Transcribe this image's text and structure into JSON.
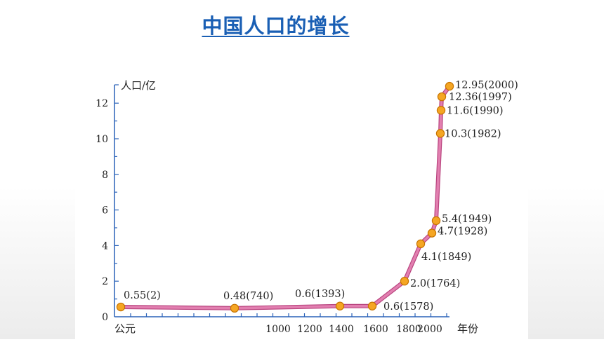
{
  "page": {
    "title": "中国人口的增长"
  },
  "colors": {
    "title": "#1a5fb4",
    "line": "#e27fb0",
    "point": "#f5a623",
    "axis": "#2a62b8"
  },
  "chart_data": {
    "type": "line",
    "title": "",
    "ylabel": "人口/亿",
    "xlabel": "年份",
    "x_origin_label": "公元",
    "ylim": [
      0,
      13
    ],
    "xlim": [
      0,
      2000
    ],
    "y_ticks": [
      0,
      2,
      4,
      6,
      8,
      10,
      12
    ],
    "y_tick_labels": [
      "0",
      "2",
      "4",
      "6",
      "8",
      "10",
      "12"
    ],
    "x_tick_labels": [
      "1000",
      "1200",
      "1400",
      "1600",
      "1800",
      "2000"
    ],
    "series": [
      {
        "points": [
          {
            "year": 2,
            "value": 0.55,
            "label": "0.55(2)"
          },
          {
            "year": 740,
            "value": 0.48,
            "label": "0.48(740)"
          },
          {
            "year": 1393,
            "value": 0.6,
            "label": "0.6(1393)"
          },
          {
            "year": 1578,
            "value": 0.6,
            "label": "0.6(1578)"
          },
          {
            "year": 1764,
            "value": 2.0,
            "label": "2.0(1764)"
          },
          {
            "year": 1849,
            "value": 4.1,
            "label": "4.1(1849)"
          },
          {
            "year": 1928,
            "value": 4.7,
            "label": "4.7(1928)"
          },
          {
            "year": 1949,
            "value": 5.4,
            "label": "5.4(1949)"
          },
          {
            "year": 1982,
            "value": 10.3,
            "label": "10.3(1982)"
          },
          {
            "year": 1990,
            "value": 11.6,
            "label": "11.6(1990)"
          },
          {
            "year": 1997,
            "value": 12.36,
            "label": "12.36(1997)"
          },
          {
            "year": 2000,
            "value": 12.95,
            "label": "12.95(2000)"
          }
        ]
      }
    ]
  }
}
